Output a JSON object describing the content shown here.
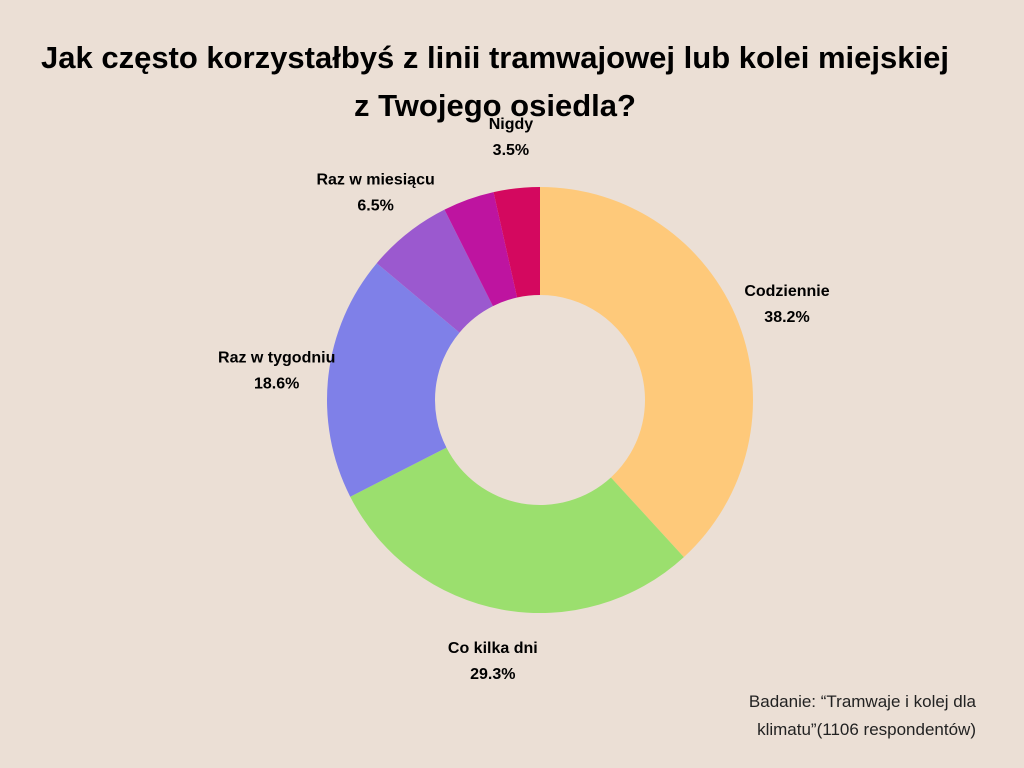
{
  "chart_data": {
    "type": "pie",
    "title": "Jak często korzystałbyś z linii tramwajowej lub kolei miejskiej z Twojego osiedla?",
    "categories": [
      "Codziennie",
      "Co kilka dni",
      "Raz w tygodniu",
      "Raz w miesiącu",
      null,
      "Nigdy"
    ],
    "values": [
      38.2,
      29.3,
      18.6,
      6.5,
      3.9,
      3.5
    ],
    "value_labels": [
      "38.2%",
      "29.3%",
      "18.6%",
      "6.5%",
      null,
      "3.5%"
    ],
    "colors": [
      "#fec97a",
      "#9bdf6e",
      "#7f80e8",
      "#9b59cf",
      "#be14a0",
      "#d4085f"
    ],
    "donut": true,
    "source": "Badanie: “Tramwaje i kolej dla klimatu”(1106 respondentów)"
  }
}
